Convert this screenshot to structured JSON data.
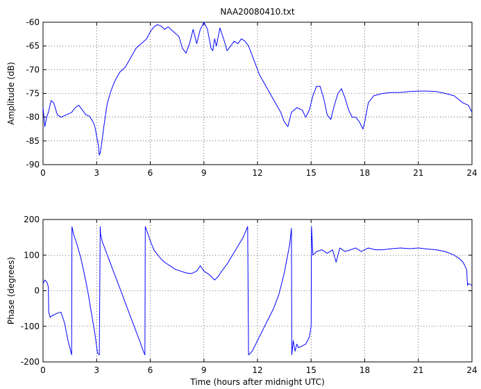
{
  "figure": {
    "title": "NAA20080410.txt"
  },
  "colors": {
    "trace": "#0000ff",
    "axes": "#000000",
    "background": "#ffffff"
  },
  "chart_data": [
    {
      "type": "line",
      "title": "NAA20080410.txt",
      "xlabel": "",
      "ylabel": "Amplitude (dB)",
      "xlim": [
        0,
        24
      ],
      "ylim": [
        -90,
        -60
      ],
      "xticks": [
        0,
        3,
        6,
        9,
        12,
        15,
        18,
        21,
        24
      ],
      "yticks": [
        -90,
        -85,
        -80,
        -75,
        -70,
        -65,
        -60
      ],
      "grid": true,
      "series": [
        {
          "x": [
            0,
            0.1,
            0.2,
            0.3,
            0.45,
            0.6,
            0.8,
            1.0,
            1.3,
            1.6,
            1.8,
            2.0,
            2.2,
            2.4,
            2.6,
            2.8,
            2.9,
            3.0,
            3.1,
            3.15,
            3.2,
            3.3,
            3.4,
            3.5,
            3.6,
            3.8,
            4.0,
            4.3,
            4.6,
            4.9,
            5.2,
            5.5,
            5.8,
            6.0,
            6.2,
            6.4,
            6.6,
            6.8,
            7.0,
            7.3,
            7.6,
            7.8,
            8.0,
            8.2,
            8.4,
            8.6,
            8.8,
            9.0,
            9.2,
            9.4,
            9.5,
            9.6,
            9.7,
            9.9,
            10.1,
            10.3,
            10.5,
            10.7,
            10.9,
            11.1,
            11.3,
            11.5,
            11.8,
            12.1,
            12.4,
            12.7,
            13.0,
            13.3,
            13.5,
            13.7,
            13.9,
            14.2,
            14.5,
            14.7,
            14.9,
            15.1,
            15.3,
            15.5,
            15.7,
            15.9,
            16.1,
            16.3,
            16.5,
            16.7,
            16.9,
            17.1,
            17.3,
            17.5,
            17.7,
            17.9,
            18.0,
            18.2,
            18.5,
            19.0,
            19.5,
            20.0,
            20.5,
            21.0,
            21.5,
            22.0,
            22.5,
            23.0,
            23.5,
            23.8,
            24.0
          ],
          "values": [
            -78,
            -82,
            -80,
            -79,
            -76.5,
            -77,
            -79.5,
            -80,
            -79.5,
            -79,
            -78,
            -77.5,
            -78.5,
            -79.5,
            -79.8,
            -81,
            -82,
            -84,
            -86,
            -88,
            -87.5,
            -85,
            -82,
            -79.5,
            -77,
            -74.5,
            -72.5,
            -70.5,
            -69.5,
            -67.5,
            -65.5,
            -64.5,
            -63.5,
            -62,
            -61,
            -60.5,
            -60.8,
            -61.5,
            -61,
            -62,
            -63,
            -65.5,
            -66.5,
            -64.5,
            -61.5,
            -64.5,
            -61.5,
            -60,
            -61.5,
            -65.5,
            -66,
            -63.5,
            -65,
            -61.2,
            -63.5,
            -66,
            -65,
            -64,
            -64.5,
            -63.5,
            -64,
            -65,
            -68,
            -71,
            -73,
            -75,
            -77,
            -79,
            -81,
            -82,
            -79,
            -78,
            -78.5,
            -80,
            -78.5,
            -75.5,
            -73.5,
            -73.5,
            -76,
            -79.5,
            -80.5,
            -77.5,
            -75,
            -74,
            -76,
            -78.5,
            -80,
            -80,
            -81,
            -82.5,
            -81,
            -77,
            -75.5,
            -75,
            -74.8,
            -74.8,
            -74.6,
            -74.5,
            -74.5,
            -74.6,
            -75,
            -75.5,
            -77,
            -77.5,
            -79
          ]
        }
      ]
    },
    {
      "type": "line",
      "title": "",
      "xlabel": "Time (hours after midnight UTC)",
      "ylabel": "Phase (degrees)",
      "xlim": [
        0,
        24
      ],
      "ylim": [
        -200,
        200
      ],
      "xticks": [
        0,
        3,
        6,
        9,
        12,
        15,
        18,
        21,
        24
      ],
      "yticks": [
        -200,
        -100,
        0,
        100,
        200
      ],
      "grid": true,
      "series": [
        {
          "x": [
            0,
            0.1,
            0.2,
            0.25,
            0.3,
            0.32,
            0.4,
            0.5,
            0.6,
            0.8,
            1.0,
            1.2,
            1.4,
            1.55,
            1.6,
            1.62,
            1.7,
            1.9,
            2.1,
            2.3,
            2.5,
            2.7,
            2.9,
            3.05,
            3.15,
            3.2,
            3.22,
            3.3,
            3.6,
            3.9,
            4.2,
            4.5,
            4.8,
            5.1,
            5.4,
            5.65,
            5.7,
            5.72,
            5.8,
            6.0,
            6.2,
            6.5,
            6.8,
            7.1,
            7.4,
            7.7,
            8.0,
            8.3,
            8.6,
            8.8,
            9.0,
            9.3,
            9.6,
            9.8,
            10.0,
            10.3,
            10.6,
            10.9,
            11.2,
            11.45,
            11.5,
            11.52,
            11.7,
            12.0,
            12.3,
            12.6,
            12.9,
            13.2,
            13.5,
            13.8,
            13.9,
            13.92,
            14.0,
            14.1,
            14.2,
            14.3,
            14.5,
            14.7,
            14.9,
            15.0,
            15.02,
            15.1,
            15.3,
            15.6,
            15.9,
            16.2,
            16.4,
            16.6,
            16.9,
            17.2,
            17.5,
            17.8,
            18.0,
            18.2,
            18.6,
            19.0,
            19.5,
            20.0,
            20.5,
            21.0,
            21.5,
            22.0,
            22.5,
            23.0,
            23.3,
            23.5,
            23.6,
            23.7,
            23.75,
            23.8,
            24.0
          ],
          "values": [
            20,
            30,
            25,
            20,
            10,
            -60,
            -75,
            -70,
            -68,
            -63,
            -60,
            -90,
            -140,
            -170,
            -180,
            180,
            160,
            130,
            95,
            50,
            0,
            -60,
            -120,
            -175,
            -180,
            180,
            160,
            140,
            100,
            60,
            20,
            -20,
            -60,
            -100,
            -140,
            -175,
            -180,
            180,
            170,
            140,
            115,
            95,
            80,
            70,
            60,
            55,
            50,
            48,
            55,
            70,
            55,
            45,
            30,
            40,
            55,
            75,
            100,
            125,
            150,
            180,
            -180,
            -180,
            -170,
            -140,
            -110,
            -80,
            -50,
            -10,
            50,
            130,
            175,
            -180,
            -140,
            -170,
            -150,
            -160,
            -155,
            -150,
            -130,
            -100,
            180,
            100,
            110,
            115,
            105,
            115,
            80,
            120,
            110,
            115,
            120,
            110,
            115,
            120,
            115,
            115,
            118,
            120,
            118,
            120,
            117,
            115,
            110,
            100,
            90,
            80,
            70,
            60,
            15,
            20,
            15
          ]
        }
      ]
    }
  ]
}
